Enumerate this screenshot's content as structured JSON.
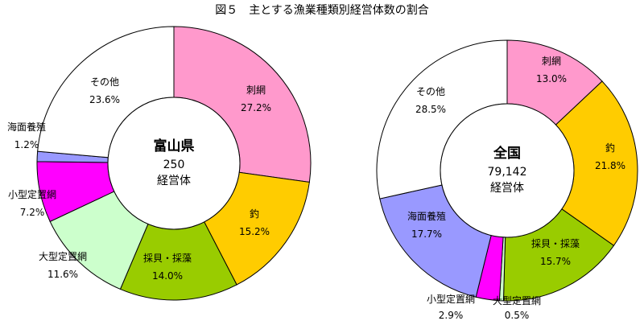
{
  "chart_data": [
    {
      "type": "pie",
      "title": "図５　主とする漁業種類別経営体数の割合",
      "center": {
        "name": "富山県",
        "value": "250",
        "unit": "経営体"
      },
      "slices": [
        {
          "label": "刺網",
          "value": 27.2,
          "display": "27.2%",
          "color": "#ff99cc"
        },
        {
          "label": "釣",
          "value": 15.2,
          "display": "15.2%",
          "color": "#ffcc00"
        },
        {
          "label": "採貝・採藻",
          "value": 14.0,
          "display": "14.0%",
          "color": "#99cc00"
        },
        {
          "label": "大型定置網",
          "value": 11.6,
          "display": "11.6%",
          "color": "#ccffcc"
        },
        {
          "label": "小型定置網",
          "value": 7.2,
          "display": "7.2%",
          "color": "#ff00ff"
        },
        {
          "label": "海面養殖",
          "value": 1.2,
          "display": "1.2%",
          "color": "#9999ff"
        },
        {
          "label": "その他",
          "value": 23.6,
          "display": "23.6%",
          "color": "#ffffff"
        }
      ]
    },
    {
      "type": "pie",
      "center": {
        "name": "全国",
        "value": "79,142",
        "unit": "経営体"
      },
      "slices": [
        {
          "label": "刺網",
          "value": 13.0,
          "display": "13.0%",
          "color": "#ff99cc"
        },
        {
          "label": "釣",
          "value": 21.8,
          "display": "21.8%",
          "color": "#ffcc00"
        },
        {
          "label": "採貝・採藻",
          "value": 15.7,
          "display": "15.7%",
          "color": "#99cc00"
        },
        {
          "label": "大型定置網",
          "value": 0.5,
          "display": "0.5%",
          "color": "#ccffcc"
        },
        {
          "label": "小型定置網",
          "value": 2.9,
          "display": "2.9%",
          "color": "#ff00ff"
        },
        {
          "label": "海面養殖",
          "value": 17.7,
          "display": "17.7%",
          "color": "#9999ff"
        },
        {
          "label": "その他",
          "value": 28.5,
          "display": "28.5%",
          "color": "#ffffff"
        }
      ]
    }
  ]
}
